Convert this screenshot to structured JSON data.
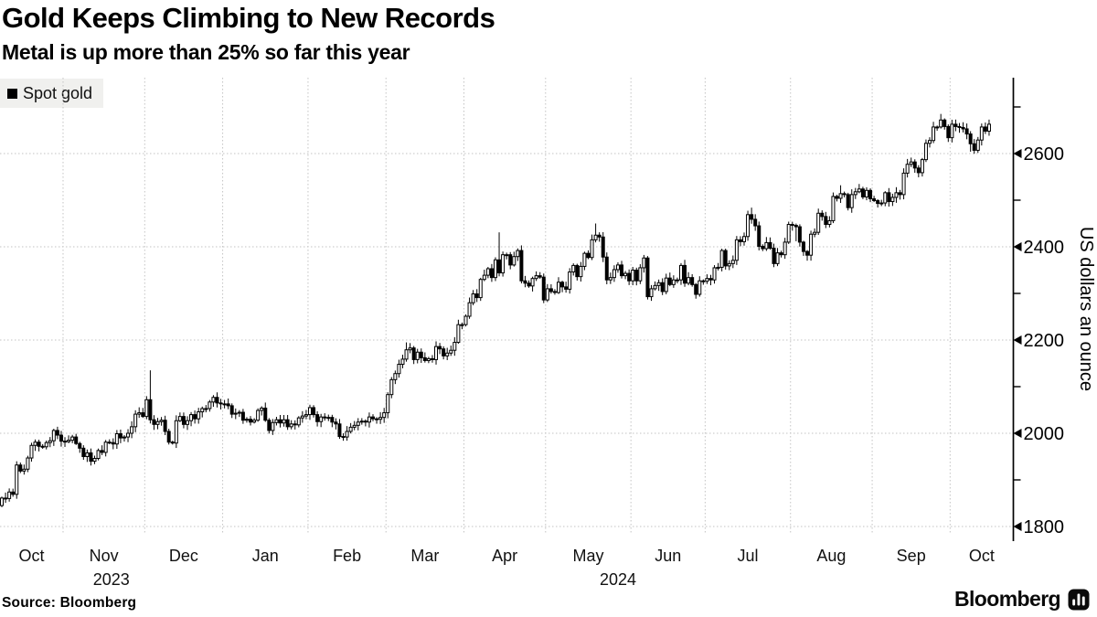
{
  "header": {
    "title": "Gold Keeps Climbing to New Records",
    "subtitle": "Metal is up more than 25% so far this year"
  },
  "legend": {
    "label": "Spot gold",
    "swatch_color": "#000000"
  },
  "footer": {
    "source": "Source: Bloomberg",
    "brand": "Bloomberg"
  },
  "chart_data": {
    "type": "candlestick",
    "title": "Gold Keeps Climbing to New Records",
    "subtitle": "Metal is up more than 25% so far this year",
    "xlabel": "",
    "ylabel": "US dollars an ounce",
    "ylim": [
      1770,
      2760
    ],
    "grid": true,
    "legend_position": "top-left",
    "y_axis": {
      "ticks": [
        1800,
        2000,
        2200,
        2400,
        2600
      ],
      "minor_ticks": [
        1900,
        2100,
        2300,
        2500,
        2700
      ]
    },
    "x_axis": {
      "month_labels": [
        "Oct",
        "Nov",
        "Dec",
        "Jan",
        "Feb",
        "Mar",
        "Apr",
        "May",
        "Jun",
        "Jul",
        "Aug",
        "Sep",
        "Oct"
      ],
      "year_labels": [
        "2023",
        "2024"
      ],
      "month_names": [
        "Jan",
        "Feb",
        "Mar",
        "Apr",
        "May",
        "Jun",
        "Jul",
        "Aug",
        "Sep",
        "Oct",
        "Nov",
        "Dec"
      ]
    },
    "colors": {
      "up_fill": "#ffffff",
      "down_fill": "#000000",
      "stroke": "#000000",
      "grid": "#c3c3c3",
      "axis": "#000000",
      "label": "#111111"
    },
    "series": [
      {
        "name": "Spot gold",
        "frequency": "daily-weekdays",
        "start_date": "2023-10-09",
        "closes": [
          1861,
          1860,
          1874,
          1869,
          1932,
          1919,
          1923,
          1947,
          1974,
          1981,
          1972,
          1971,
          1980,
          1984,
          2006,
          1996,
          1983,
          1982,
          1985,
          1992,
          1978,
          1968,
          1950,
          1958,
          1940,
          1946,
          1963,
          1959,
          1981,
          1980,
          1977,
          1999,
          1990,
          1992,
          2000,
          2014,
          2041,
          2044,
          2036,
          2072,
          2029,
          2019,
          2025,
          2028,
          2004,
          1981,
          1979,
          2027,
          2036,
          2019,
          2027,
          2040,
          2031,
          2046,
          2053,
          2053,
          2067,
          2077,
          2065,
          2063,
          2063,
          2059,
          2041,
          2043,
          2045,
          2028,
          2030,
          2024,
          2028,
          2049,
          2054,
          2028,
          2006,
          2023,
          2029,
          2022,
          2029,
          2014,
          2020,
          2018,
          2033,
          2037,
          2040,
          2055,
          2040,
          2025,
          2035,
          2034,
          2034,
          2024,
          2020,
          1993,
          1992,
          2004,
          2013,
          2017,
          2024,
          2026,
          2024,
          2035,
          2031,
          2030,
          2034,
          2044,
          2083,
          2115,
          2128,
          2148,
          2159,
          2179,
          2183,
          2158,
          2174,
          2162,
          2156,
          2160,
          2158,
          2186,
          2181,
          2166,
          2172,
          2178,
          2195,
          2233,
          2233,
          2251,
          2280,
          2299,
          2291,
          2330,
          2339,
          2353,
          2334,
          2372,
          2344,
          2383,
          2383,
          2361,
          2379,
          2392,
          2327,
          2322,
          2316,
          2332,
          2338,
          2335,
          2286,
          2310,
          2304,
          2302,
          2324,
          2314,
          2309,
          2346,
          2360,
          2336,
          2358,
          2386,
          2377,
          2415,
          2425,
          2421,
          2378,
          2329,
          2334,
          2351,
          2361,
          2338,
          2343,
          2327,
          2350,
          2327,
          2355,
          2376,
          2293,
          2310,
          2317,
          2323,
          2304,
          2333,
          2319,
          2329,
          2329,
          2360,
          2322,
          2334,
          2319,
          2298,
          2327,
          2326,
          2332,
          2329,
          2355,
          2356,
          2392,
          2359,
          2364,
          2371,
          2415,
          2411,
          2422,
          2469,
          2459,
          2445,
          2401,
          2396,
          2409,
          2397,
          2364,
          2387,
          2383,
          2410,
          2448,
          2446,
          2443,
          2410,
          2390,
          2382,
          2427,
          2431,
          2472,
          2465,
          2448,
          2456,
          2508,
          2504,
          2514,
          2512,
          2484,
          2512,
          2518,
          2524,
          2507,
          2521,
          2503,
          2499,
          2493,
          2494,
          2516,
          2497,
          2506,
          2516,
          2512,
          2558,
          2577,
          2582,
          2569,
          2559,
          2587,
          2622,
          2628,
          2657,
          2657,
          2672,
          2658,
          2634,
          2663,
          2658,
          2656,
          2653,
          2642,
          2621,
          2607,
          2629,
          2657,
          2648,
          2663
        ],
        "wick_highs": {
          "2023-12-04": 2135,
          "2024-03-08": 2195,
          "2024-04-12": 2431,
          "2024-05-20": 2450,
          "2024-07-17": 2484,
          "2024-08-20": 2532,
          "2024-09-26": 2685
        },
        "wick_lows": {
          "2024-02-13": 1988,
          "2024-02-14": 1984,
          "2024-06-07": 2287,
          "2024-08-02": 2412,
          "2024-10-08": 2604
        }
      }
    ]
  }
}
